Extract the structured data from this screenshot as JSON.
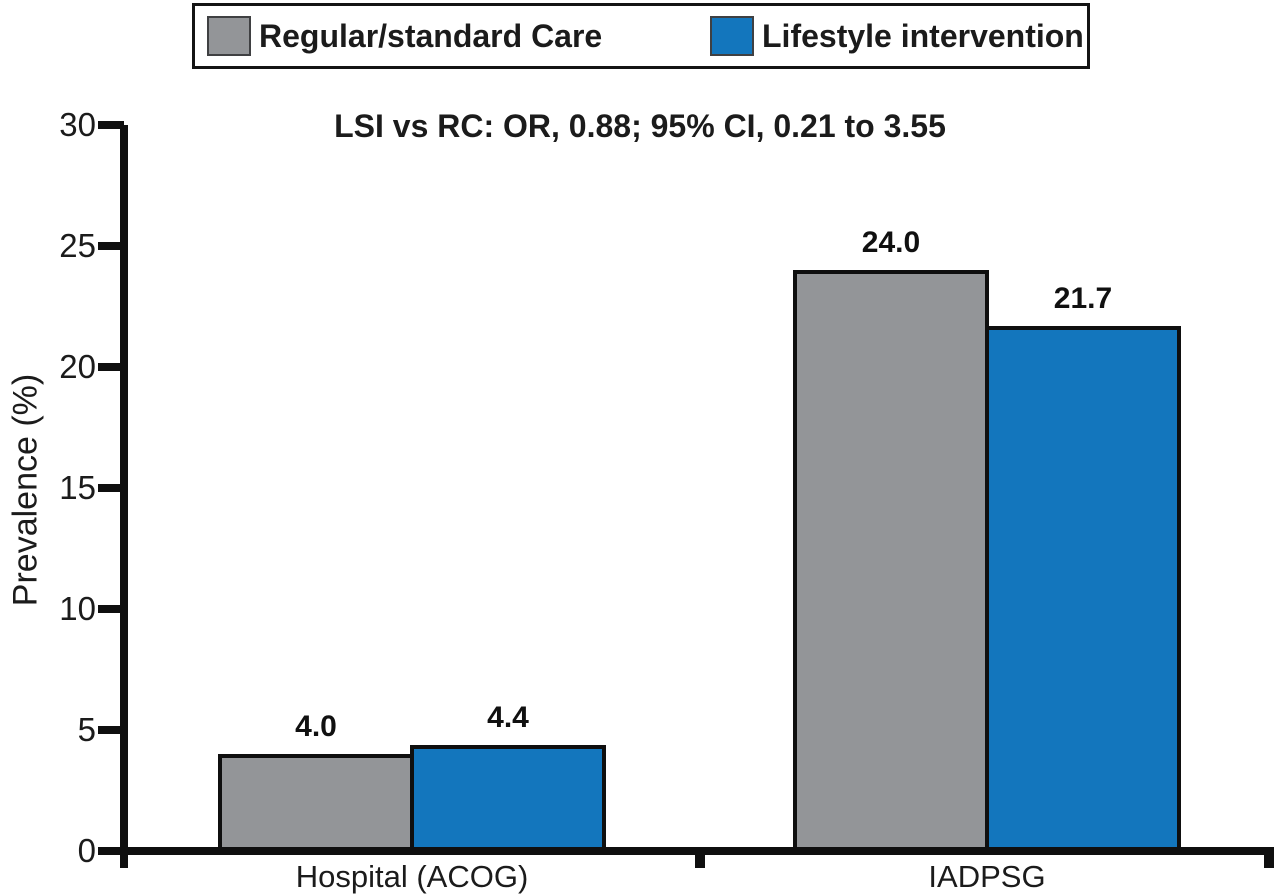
{
  "chart_data": {
    "type": "bar",
    "title": "LSI vs RC: OR, 0.88; 95% CI, 0.21 to 3.55",
    "categories": [
      "Hospital (ACOG)",
      "IADPSG"
    ],
    "series": [
      {
        "name": "Regular/standard Care",
        "color": "#939598",
        "values": [
          4.0,
          24.0
        ],
        "value_labels": [
          "4.0",
          "24.0"
        ]
      },
      {
        "name": "Lifestyle intervention",
        "color": "#1376BD",
        "values": [
          4.4,
          21.7
        ],
        "value_labels": [
          "4.4",
          "21.7"
        ]
      }
    ],
    "xlabel": "",
    "ylabel": "Prevalence (%)",
    "ylim": [
      0,
      30
    ],
    "yticks": [
      0,
      5,
      10,
      15,
      20,
      25,
      30
    ],
    "ytick_labels": [
      "0",
      "5",
      "10",
      "15",
      "20",
      "25",
      "30"
    ],
    "grid": false,
    "legend_position": "top-center",
    "bar_edge_color": "#0f0f0f",
    "background": "#ffffff"
  }
}
